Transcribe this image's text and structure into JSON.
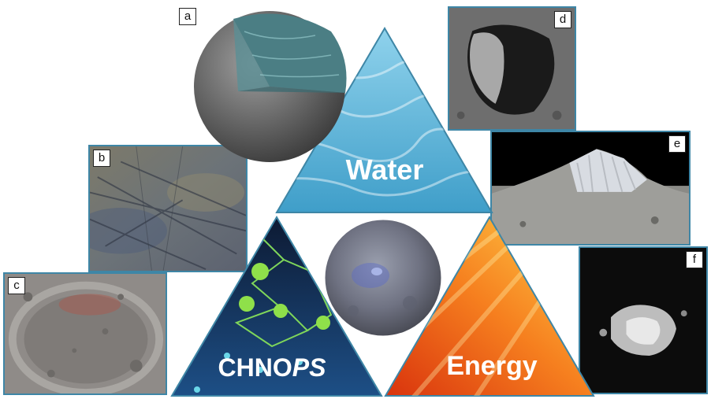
{
  "panels": {
    "a": {
      "label": "a"
    },
    "b": {
      "label": "b"
    },
    "c": {
      "label": "c"
    },
    "d": {
      "label": "d"
    },
    "e": {
      "label": "e"
    },
    "f": {
      "label": "f"
    }
  },
  "triangle": {
    "water": "Water",
    "chnops_prefix": "CHNO",
    "chnops_suffix": "PS",
    "energy": "Energy"
  },
  "colors": {
    "border": "#3e86a6",
    "water": "#5fb8dc",
    "energy": "#f26a1b",
    "chnops": "#1b3a66"
  }
}
